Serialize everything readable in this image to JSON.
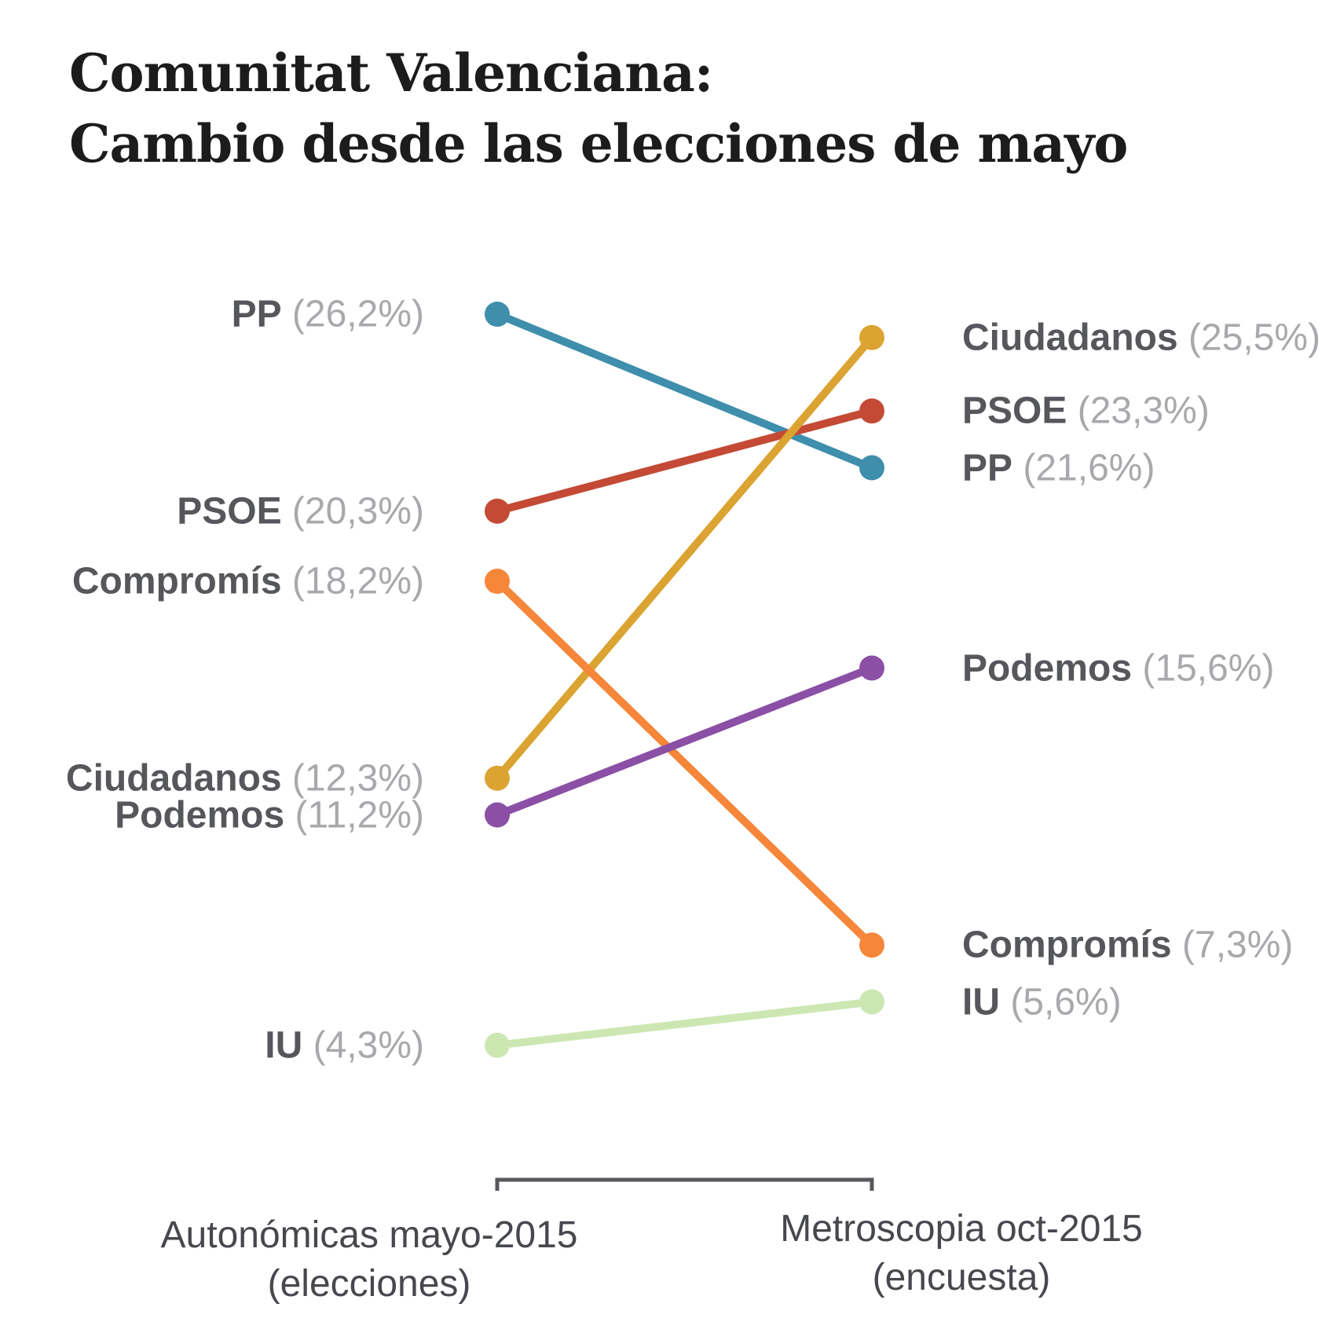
{
  "title": {
    "line1": "Comunitat Valenciana:",
    "line2": "Cambio desde las elecciones de mayo"
  },
  "axis": {
    "left_col_line1": "Autonómicas mayo-2015",
    "left_col_line2": "(elecciones)",
    "right_col_line1": "Metroscopia oct-2015",
    "right_col_line2": "(encuesta)"
  },
  "chart_data": {
    "type": "slope",
    "title": "Comunitat Valenciana: Cambio desde las elecciones de mayo",
    "columns": [
      "Autonómicas mayo-2015 (elecciones)",
      "Metroscopia oct-2015 (encuesta)"
    ],
    "unit": "%",
    "decimal_style": "comma",
    "series": [
      {
        "name": "PP",
        "color": "#3e8eac",
        "values": [
          26.2,
          21.6
        ],
        "left_pct": "(26,2%)",
        "right_pct": "(21,6%)"
      },
      {
        "name": "PSOE",
        "color": "#c44a36",
        "values": [
          20.3,
          23.3
        ],
        "left_pct": "(20,3%)",
        "right_pct": "(23,3%)"
      },
      {
        "name": "Compromís",
        "color": "#f5863a",
        "values": [
          18.2,
          7.3
        ],
        "left_pct": "(18,2%)",
        "right_pct": "(7,3%)"
      },
      {
        "name": "Ciudadanos",
        "color": "#dba432",
        "values": [
          12.3,
          25.5
        ],
        "left_pct": "(12,3%)",
        "right_pct": "(25,5%)"
      },
      {
        "name": "Podemos",
        "color": "#8b4fa5",
        "values": [
          11.2,
          15.6
        ],
        "left_pct": "(11,2%)",
        "right_pct": "(15,6%)"
      },
      {
        "name": "IU",
        "color": "#cde7b3",
        "values": [
          4.3,
          5.6
        ],
        "left_pct": "(4,3%)",
        "right_pct": "(5,6%)"
      }
    ]
  }
}
